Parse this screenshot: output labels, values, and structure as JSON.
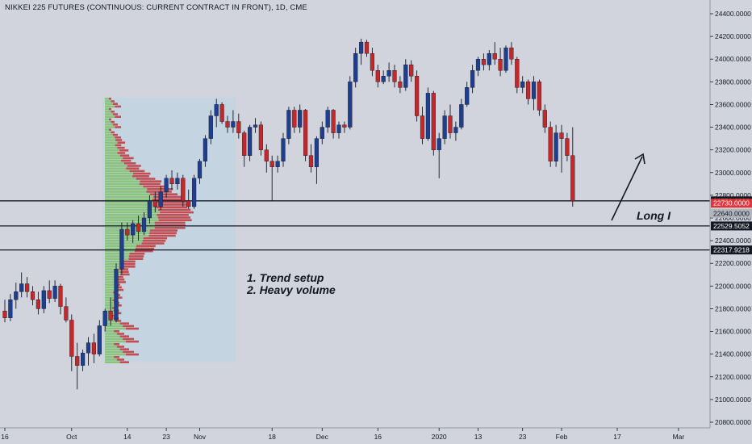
{
  "header": {
    "title": "NIKKEI 225 FUTURES (CONTINUOUS: CURRENT CONTRACT IN FRONT), 1D, CME"
  },
  "colors": {
    "background": "#d1d4dc",
    "up": "#1e3f8f",
    "down": "#c4282b",
    "vp_up": "#7fbf6a",
    "vp_down": "#c0363a",
    "va_box": "#bcd3e6",
    "level_line": "#131722",
    "tag_red": "#e0343a",
    "tag_black": "#131722"
  },
  "annotations": {
    "note_line1": "1. Trend setup",
    "note_line2": "2. Heavy volume",
    "long_label": "Long I"
  },
  "chart_data": {
    "type": "candlestick",
    "title": "NIKKEI 225 FUTURES (CONTINUOUS: CURRENT CONTRACT IN FRONT), 1D, CME",
    "ylim": [
      20750,
      24550
    ],
    "y_ticks": [
      "24400.0000",
      "24200.0000",
      "24000.0000",
      "23800.0000",
      "23600.0000",
      "23400.0000",
      "23200.0000",
      "23000.0000",
      "22800.0000",
      "22600.0000",
      "22400.0000",
      "22200.0000",
      "22000.0000",
      "21800.0000",
      "21600.0000",
      "21400.0000",
      "21200.0000",
      "21000.0000",
      "20800.0000"
    ],
    "x_ticks": [
      {
        "label": "16",
        "bar": 0
      },
      {
        "label": "Oct",
        "bar": 12
      },
      {
        "label": "14",
        "bar": 22
      },
      {
        "label": "23",
        "bar": 29
      },
      {
        "label": "Nov",
        "bar": 35
      },
      {
        "label": "18",
        "bar": 48
      },
      {
        "label": "Dec",
        "bar": 57
      },
      {
        "label": "16",
        "bar": 67
      },
      {
        "label": "2020",
        "bar": 78
      },
      {
        "label": "13",
        "bar": 85
      },
      {
        "label": "23",
        "bar": 93
      },
      {
        "label": "Feb",
        "bar": 100
      },
      {
        "label": "17",
        "bar": 110
      },
      {
        "label": "Mar",
        "bar": 121
      }
    ],
    "horizontal_levels": [
      {
        "value": 22750.6223,
        "label": "22750.6223",
        "tag": "black"
      },
      {
        "value": 22529.5052,
        "label": "22529.5052",
        "tag": "black"
      },
      {
        "value": 22317.9218,
        "label": "22317.9218",
        "tag": "black"
      }
    ],
    "price_tags": [
      {
        "value": 22730.0,
        "label": "22730.0000",
        "tag": "red"
      },
      {
        "value": 22640.0,
        "label": "22640.0000",
        "tag": "gray"
      }
    ],
    "candles": [
      [
        21780,
        21880,
        21680,
        21720
      ],
      [
        21720,
        21930,
        21690,
        21880
      ],
      [
        21880,
        22030,
        21800,
        21950
      ],
      [
        21950,
        22120,
        21900,
        22020
      ],
      [
        22020,
        22080,
        21900,
        21950
      ],
      [
        21950,
        22000,
        21830,
        21880
      ],
      [
        21880,
        21950,
        21750,
        21800
      ],
      [
        21800,
        22000,
        21760,
        21960
      ],
      [
        21960,
        22050,
        21850,
        21890
      ],
      [
        21890,
        22050,
        21860,
        22000
      ],
      [
        22000,
        22020,
        21750,
        21820
      ],
      [
        21820,
        21900,
        21680,
        21700
      ],
      [
        21700,
        21750,
        21250,
        21380
      ],
      [
        21380,
        21500,
        21090,
        21300
      ],
      [
        21300,
        21440,
        21250,
        21410
      ],
      [
        21410,
        21550,
        21300,
        21500
      ],
      [
        21500,
        21580,
        21320,
        21400
      ],
      [
        21400,
        21700,
        21380,
        21650
      ],
      [
        21650,
        21800,
        21600,
        21780
      ],
      [
        21780,
        21900,
        21650,
        21700
      ],
      [
        21700,
        22200,
        21680,
        22150
      ],
      [
        22150,
        22560,
        22100,
        22500
      ],
      [
        22500,
        22560,
        22400,
        22450
      ],
      [
        22450,
        22580,
        22380,
        22550
      ],
      [
        22550,
        22620,
        22400,
        22480
      ],
      [
        22480,
        22650,
        22450,
        22600
      ],
      [
        22600,
        22800,
        22550,
        22750
      ],
      [
        22750,
        22830,
        22650,
        22700
      ],
      [
        22700,
        22880,
        22670,
        22830
      ],
      [
        22830,
        22980,
        22780,
        22950
      ],
      [
        22950,
        23020,
        22850,
        22900
      ],
      [
        22900,
        23000,
        22850,
        22950
      ],
      [
        22950,
        22980,
        22700,
        22750
      ],
      [
        22750,
        22850,
        22680,
        22700
      ],
      [
        22700,
        22980,
        22680,
        22950
      ],
      [
        22950,
        23120,
        22900,
        23100
      ],
      [
        23100,
        23330,
        23050,
        23300
      ],
      [
        23300,
        23550,
        23250,
        23500
      ],
      [
        23500,
        23650,
        23400,
        23600
      ],
      [
        23600,
        23620,
        23430,
        23450
      ],
      [
        23450,
        23500,
        23350,
        23400
      ],
      [
        23400,
        23550,
        23350,
        23450
      ],
      [
        23450,
        23520,
        23300,
        23350
      ],
      [
        23350,
        23370,
        23050,
        23150
      ],
      [
        23150,
        23420,
        23100,
        23400
      ],
      [
        23400,
        23480,
        23350,
        23420
      ],
      [
        23420,
        23450,
        23150,
        23200
      ],
      [
        23200,
        23250,
        23000,
        23100
      ],
      [
        23100,
        23150,
        22750,
        23050
      ],
      [
        23050,
        23150,
        23000,
        23100
      ],
      [
        23100,
        23350,
        23050,
        23300
      ],
      [
        23300,
        23580,
        23250,
        23550
      ],
      [
        23550,
        23580,
        23350,
        23400
      ],
      [
        23400,
        23600,
        23350,
        23550
      ],
      [
        23550,
        23560,
        23100,
        23150
      ],
      [
        23150,
        23250,
        23000,
        23050
      ],
      [
        23050,
        23320,
        22900,
        23300
      ],
      [
        23300,
        23450,
        23250,
        23400
      ],
      [
        23400,
        23580,
        23350,
        23550
      ],
      [
        23550,
        23560,
        23300,
        23350
      ],
      [
        23350,
        23450,
        23300,
        23420
      ],
      [
        23420,
        23450,
        23350,
        23400
      ],
      [
        23400,
        23850,
        23380,
        23800
      ],
      [
        23800,
        24100,
        23750,
        24050
      ],
      [
        24050,
        24180,
        23950,
        24150
      ],
      [
        24150,
        24170,
        24020,
        24050
      ],
      [
        24050,
        24100,
        23850,
        23900
      ],
      [
        23900,
        23950,
        23750,
        23800
      ],
      [
        23800,
        23900,
        23780,
        23850
      ],
      [
        23850,
        23970,
        23800,
        23900
      ],
      [
        23900,
        23950,
        23750,
        23800
      ],
      [
        23800,
        23850,
        23700,
        23750
      ],
      [
        23750,
        24000,
        23720,
        23950
      ],
      [
        23950,
        23990,
        23800,
        23850
      ],
      [
        23850,
        23900,
        23450,
        23500
      ],
      [
        23500,
        23580,
        23250,
        23300
      ],
      [
        23300,
        23750,
        23280,
        23700
      ],
      [
        23700,
        23720,
        23150,
        23200
      ],
      [
        23200,
        23350,
        22950,
        23300
      ],
      [
        23300,
        23550,
        23250,
        23500
      ],
      [
        23500,
        23600,
        23300,
        23350
      ],
      [
        23350,
        23450,
        23280,
        23400
      ],
      [
        23400,
        23650,
        23380,
        23600
      ],
      [
        23600,
        23800,
        23580,
        23750
      ],
      [
        23750,
        23950,
        23700,
        23900
      ],
      [
        23900,
        24020,
        23850,
        24000
      ],
      [
        24000,
        24050,
        23900,
        23950
      ],
      [
        23950,
        24080,
        23900,
        24050
      ],
      [
        24050,
        24150,
        23950,
        24000
      ],
      [
        24000,
        24100,
        23850,
        23900
      ],
      [
        23900,
        24120,
        23880,
        24100
      ],
      [
        24100,
        24150,
        23950,
        24000
      ],
      [
        24000,
        24020,
        23700,
        23750
      ],
      [
        23750,
        23850,
        23700,
        23800
      ],
      [
        23800,
        23820,
        23600,
        23650
      ],
      [
        23650,
        23850,
        23550,
        23800
      ],
      [
        23800,
        23820,
        23500,
        23550
      ],
      [
        23550,
        23600,
        23350,
        23400
      ],
      [
        23400,
        23450,
        23050,
        23100
      ],
      [
        23100,
        23420,
        23050,
        23350
      ],
      [
        23350,
        23420,
        23000,
        23300
      ],
      [
        23300,
        23350,
        23100,
        23150
      ],
      [
        23150,
        23400,
        22700,
        22750
      ]
    ]
  }
}
